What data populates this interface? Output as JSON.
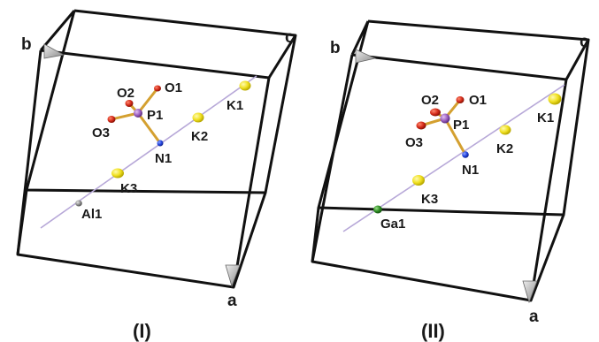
{
  "panels": [
    {
      "id": "I",
      "caption": "(I)",
      "axes": {
        "a": "a",
        "b": "b",
        "c": "c"
      },
      "metal": {
        "label": "Al1",
        "color": "#8e8e8e"
      },
      "atoms": {
        "O1": "O1",
        "O2": "O2",
        "O3": "O3",
        "P1": "P1",
        "N1": "N1",
        "K1": "K1",
        "K2": "K2",
        "K3": "K3"
      }
    },
    {
      "id": "II",
      "caption": "(II)",
      "axes": {
        "a": "a",
        "b": "b",
        "c": "c"
      },
      "metal": {
        "label": "Ga1",
        "color": "#2e8b22"
      },
      "atoms": {
        "O1": "O1",
        "O2": "O2",
        "O3": "O3",
        "P1": "P1",
        "N1": "N1",
        "K1": "K1",
        "K2": "K2",
        "K3": "K3"
      }
    }
  ],
  "colors": {
    "cell_edge": "#111111",
    "axis_line": "#b7a8d8",
    "oxygen": "#d42b1a",
    "phosphorus": "#9b5fc0",
    "nitrogen": "#2244dd",
    "potassium": "#f0e020",
    "bond": "#d4a030",
    "arrow": "#b8b8b8"
  }
}
